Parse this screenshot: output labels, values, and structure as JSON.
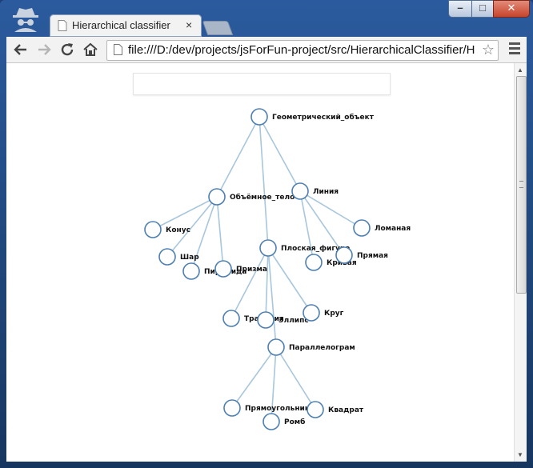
{
  "browser": {
    "tab_title": "Hierarchical classifier",
    "close_glyph": "×",
    "url": "file:///D:/dev/projects/jsForFun-project/src/HierarchicalClassifier/H",
    "window_controls": {
      "minimize": "–",
      "maximize": "□",
      "close": "✕"
    }
  },
  "search": {
    "value": "",
    "placeholder": ""
  },
  "tree": {
    "nodes": [
      {
        "id": "root",
        "label": "Геометрический_объект"
      },
      {
        "id": "solid",
        "label": "Объёмное_тело"
      },
      {
        "id": "line",
        "label": "Линия"
      },
      {
        "id": "flat",
        "label": "Плоская_фигура"
      },
      {
        "id": "cone",
        "label": "Конус"
      },
      {
        "id": "sphere",
        "label": "Шар"
      },
      {
        "id": "pyramid",
        "label": "Пирамида"
      },
      {
        "id": "prism",
        "label": "Призма"
      },
      {
        "id": "polyline",
        "label": "Ломаная"
      },
      {
        "id": "curve",
        "label": "Кривая"
      },
      {
        "id": "straight",
        "label": "Прямая"
      },
      {
        "id": "trapezoid",
        "label": "Трапеция"
      },
      {
        "id": "ellipse",
        "label": "Эллипс"
      },
      {
        "id": "circle",
        "label": "Круг"
      },
      {
        "id": "parallelogram",
        "label": "Параллелограм"
      },
      {
        "id": "rectangle",
        "label": "Прямоугольник"
      },
      {
        "id": "rhombus",
        "label": "Ромб"
      },
      {
        "id": "square",
        "label": "Квадрат"
      }
    ],
    "edges": [
      [
        "root",
        "solid"
      ],
      [
        "root",
        "line"
      ],
      [
        "root",
        "flat"
      ],
      [
        "solid",
        "cone"
      ],
      [
        "solid",
        "sphere"
      ],
      [
        "solid",
        "pyramid"
      ],
      [
        "solid",
        "prism"
      ],
      [
        "line",
        "polyline"
      ],
      [
        "line",
        "curve"
      ],
      [
        "line",
        "straight"
      ],
      [
        "flat",
        "trapezoid"
      ],
      [
        "flat",
        "ellipse"
      ],
      [
        "flat",
        "circle"
      ],
      [
        "flat",
        "parallelogram"
      ],
      [
        "parallelogram",
        "rectangle"
      ],
      [
        "parallelogram",
        "rhombus"
      ],
      [
        "parallelogram",
        "square"
      ]
    ],
    "colors": {
      "link": "#a8c6dc",
      "node_stroke": "#4d7fb3"
    }
  }
}
